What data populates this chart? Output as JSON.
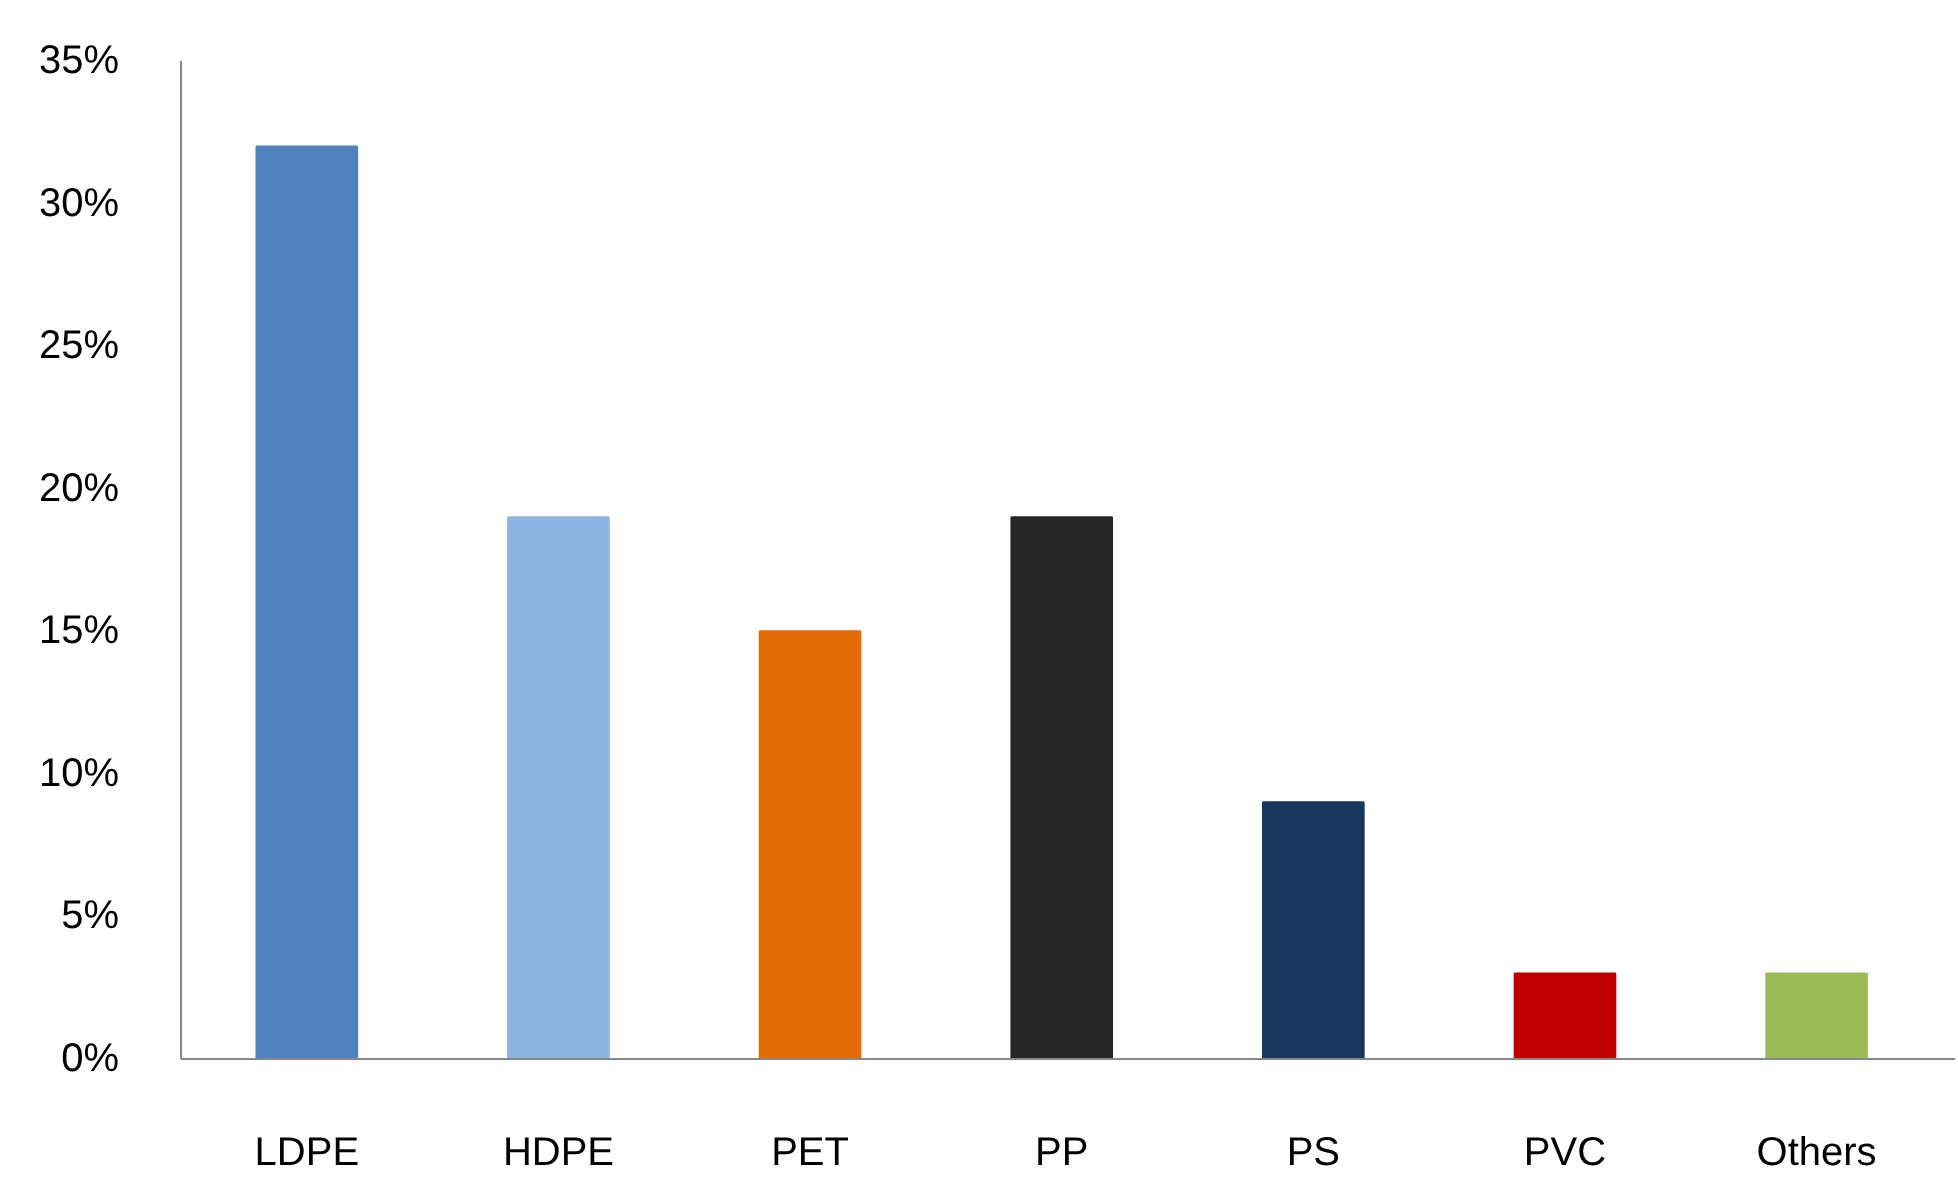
{
  "chart_data": {
    "type": "bar",
    "categories": [
      "LDPE",
      "HDPE",
      "PET",
      "PP",
      "PS",
      "PVC",
      "Others"
    ],
    "values": [
      32,
      19,
      15,
      19,
      9,
      3,
      3
    ],
    "colors": [
      "#4f81bd",
      "#8eb4e3",
      "#e36c09",
      "#262626",
      "#17375e",
      "#c00000",
      "#9bbb59"
    ],
    "ylim": [
      0,
      35
    ],
    "yticks": [
      {
        "value": 0,
        "label": "0%"
      },
      {
        "value": 5,
        "label": "5%"
      },
      {
        "value": 10,
        "label": "10%"
      },
      {
        "value": 15,
        "label": "15%"
      },
      {
        "value": 20,
        "label": "20%"
      },
      {
        "value": 25,
        "label": "25%"
      },
      {
        "value": 30,
        "label": "30%"
      },
      {
        "value": 35,
        "label": "35%"
      }
    ],
    "grid": false
  }
}
